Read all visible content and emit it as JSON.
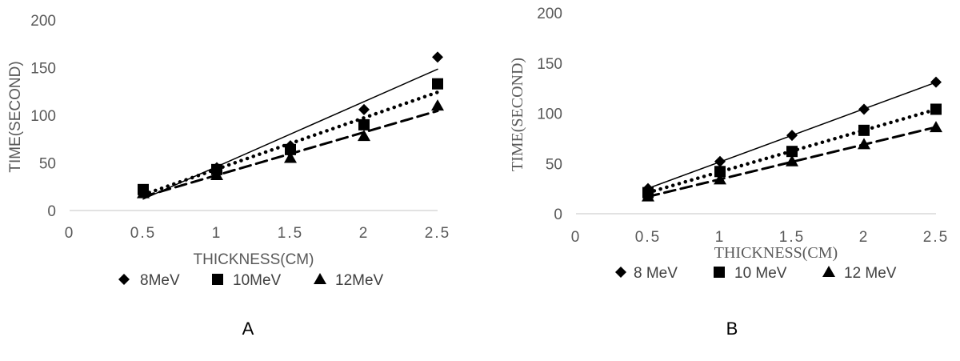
{
  "chart_data": [
    {
      "type": "scatter",
      "panel_label": "A",
      "xlabel": "THICKNESS(CM)",
      "ylabel": "TIME(SECOND)",
      "xlim": [
        0,
        2.5
      ],
      "ylim": [
        0,
        200
      ],
      "xticks": [
        "0",
        "0.5",
        "1",
        "1.5",
        "2",
        "2.5"
      ],
      "yticks": [
        "0",
        "50",
        "100",
        "150",
        "200"
      ],
      "grid": false,
      "legend_position": "bottom",
      "x": [
        0.5,
        1,
        1.5,
        2,
        2.5
      ],
      "series": [
        {
          "name": "8MeV",
          "marker": "diamond",
          "trendline": "solid",
          "values": [
            21,
            45,
            68,
            106,
            161
          ]
        },
        {
          "name": "10MeV",
          "marker": "square",
          "trendline": "dotted",
          "values": [
            22,
            43,
            64,
            90,
            133
          ]
        },
        {
          "name": "12MeV",
          "marker": "triangle",
          "trendline": "dashed",
          "values": [
            18,
            37,
            55,
            78,
            110
          ]
        }
      ]
    },
    {
      "type": "scatter",
      "panel_label": "B",
      "xlabel": "THICKNESS(CM)",
      "ylabel": "TIME(SECOND)",
      "xlim": [
        0,
        2.5
      ],
      "ylim": [
        0,
        200
      ],
      "xticks": [
        "0",
        "0.5",
        "1",
        "1.5",
        "2",
        "2.5"
      ],
      "yticks": [
        "0",
        "50",
        "100",
        "150",
        "200"
      ],
      "grid": false,
      "legend_position": "bottom",
      "x": [
        0.5,
        1,
        1.5,
        2,
        2.5
      ],
      "series": [
        {
          "name": "8 MeV",
          "marker": "diamond",
          "trendline": "solid",
          "values": [
            25,
            52,
            78,
            104,
            131
          ]
        },
        {
          "name": "10 MeV",
          "marker": "square",
          "trendline": "dotted",
          "values": [
            21,
            42,
            62,
            83,
            104
          ]
        },
        {
          "name": "12 MeV",
          "marker": "triangle",
          "trendline": "dashed",
          "values": [
            17,
            34,
            52,
            69,
            86
          ]
        }
      ]
    }
  ],
  "colors": {
    "marker": "#000000",
    "axis": "#d9d9d9",
    "tick_text": "#595959",
    "legend_text": "#404040"
  }
}
